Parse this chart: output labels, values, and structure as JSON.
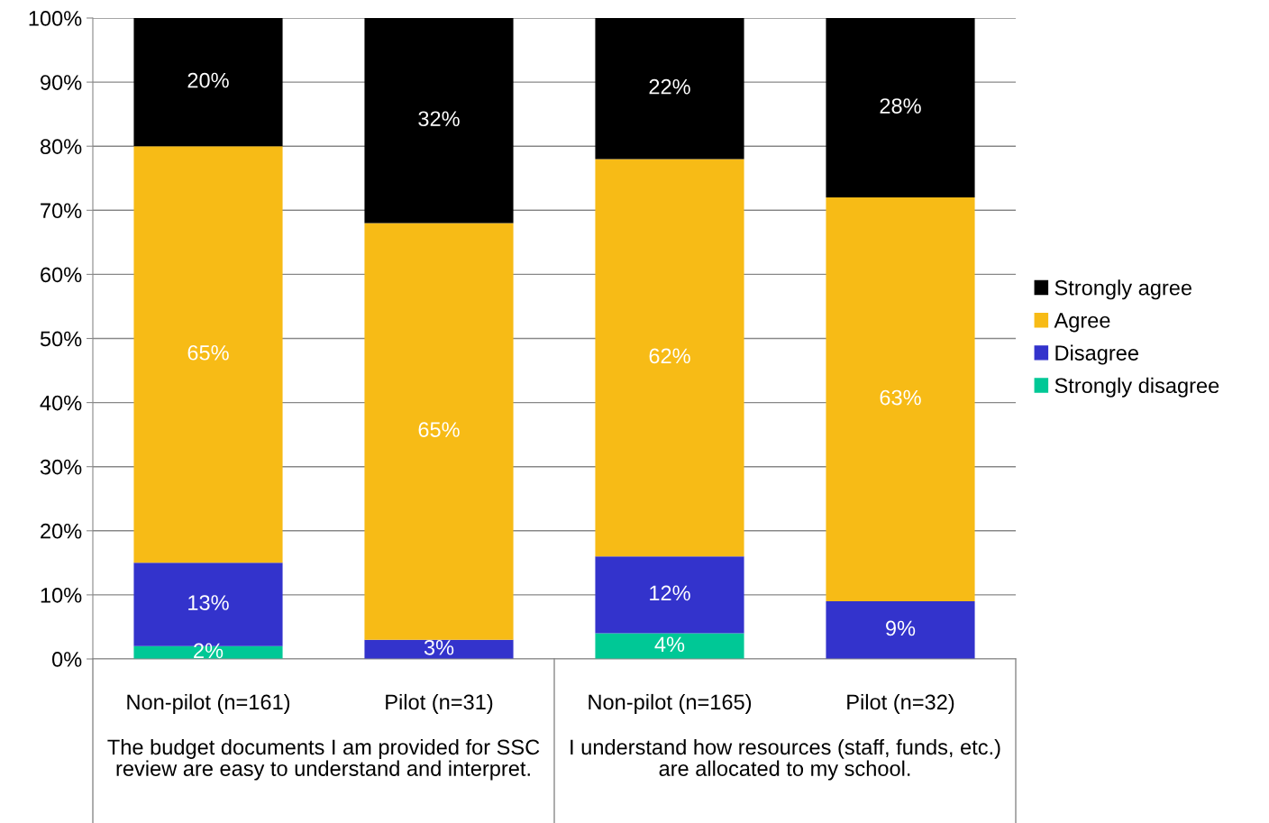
{
  "chart_data": {
    "type": "bar",
    "stacked": true,
    "categories": [
      "Non-pilot (n=161)",
      "Pilot (n=31)",
      "Non-pilot (n=165)",
      "Pilot (n=32)"
    ],
    "series": [
      {
        "name": "Strongly disagree",
        "color": "#00c896",
        "values": [
          2,
          0,
          4,
          0
        ],
        "value_labels": [
          "2%",
          null,
          "4%",
          null
        ]
      },
      {
        "name": "Disagree",
        "color": "#3333cc",
        "values": [
          13,
          3,
          12,
          9
        ],
        "value_labels": [
          "13%",
          "3%",
          "12%",
          "9%"
        ]
      },
      {
        "name": "Agree",
        "color": "#f7bb16",
        "values": [
          65,
          65,
          62,
          63
        ],
        "value_labels": [
          "65%",
          "65%",
          "62%",
          "63%"
        ]
      },
      {
        "name": "Strongly agree",
        "color": "#000000",
        "values": [
          20,
          32,
          22,
          28
        ],
        "value_labels": [
          "20%",
          "32%",
          "22%",
          "28%"
        ]
      }
    ],
    "ylim": [
      0,
      100
    ],
    "yticks": [
      {
        "value": 0,
        "label": "0%"
      },
      {
        "value": 10,
        "label": "10%"
      },
      {
        "value": 20,
        "label": "20%"
      },
      {
        "value": 30,
        "label": "30%"
      },
      {
        "value": 40,
        "label": "40%"
      },
      {
        "value": 50,
        "label": "50%"
      },
      {
        "value": 60,
        "label": "60%"
      },
      {
        "value": 70,
        "label": "70%"
      },
      {
        "value": 80,
        "label": "80%"
      },
      {
        "value": 90,
        "label": "90%"
      },
      {
        "value": 100,
        "label": "100%"
      }
    ],
    "grid": "y",
    "legend": "right",
    "annotations": [
      "The budget documents I am provided for SSC review are easy to understand and interpret.",
      "I understand how resources (staff, funds, etc.) are allocated to my school."
    ]
  }
}
